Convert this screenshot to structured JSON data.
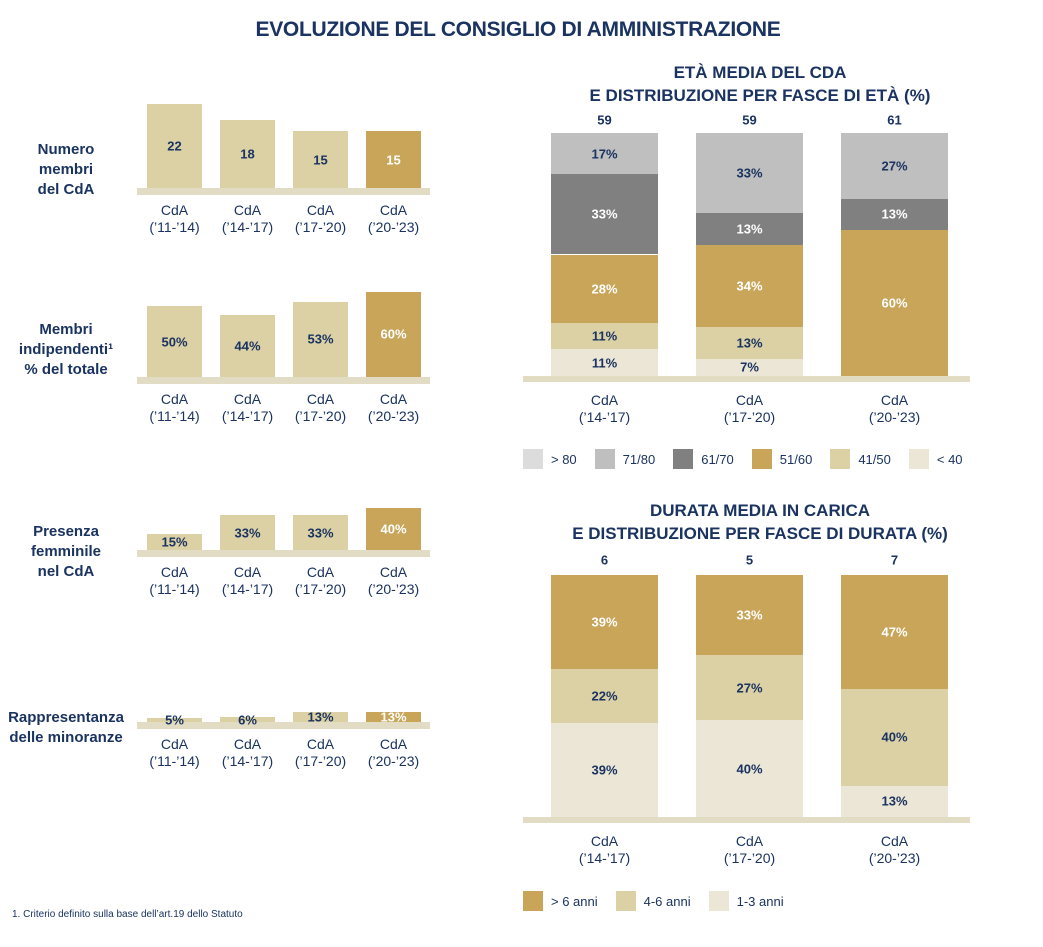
{
  "title": "EVOLUZIONE DEL CONSIGLIO DI AMMINISTRAZIONE",
  "footnote": "1. Criterio definito sulla base dell’art.19 dello Statuto",
  "chart_data": [
    {
      "type": "bar",
      "title": "Numero\nmembri\ndel CdA",
      "categories": [
        "CdA\n(’11-’14)",
        "CdA\n(’14-’17)",
        "CdA\n(’17-’20)",
        "CdA\n(’20-’23)"
      ],
      "values": [
        22,
        18,
        15,
        15
      ],
      "colors": [
        "#dcd1a5",
        "#dcd1a5",
        "#dcd1a5",
        "#c9a55a"
      ]
    },
    {
      "type": "bar",
      "title": "Membri\nindipendenti¹\n% del totale",
      "categories": [
        "CdA\n(’11-’14)",
        "CdA\n(’14-’17)",
        "CdA\n(’17-’20)",
        "CdA\n(’20-’23)"
      ],
      "values": [
        50,
        44,
        53,
        60
      ],
      "value_labels": [
        "50%",
        "44%",
        "53%",
        "60%"
      ],
      "colors": [
        "#dcd1a5",
        "#dcd1a5",
        "#dcd1a5",
        "#c9a55a"
      ]
    },
    {
      "type": "bar",
      "title": "Presenza\nfemminile\nnel CdA",
      "categories": [
        "CdA\n(’11-’14)",
        "CdA\n(’14-’17)",
        "CdA\n(’17-’20)",
        "CdA\n(’20-’23)"
      ],
      "values": [
        15,
        33,
        33,
        40
      ],
      "value_labels": [
        "15%",
        "33%",
        "33%",
        "40%"
      ],
      "colors": [
        "#dcd1a5",
        "#dcd1a5",
        "#dcd1a5",
        "#c9a55a"
      ]
    },
    {
      "type": "bar",
      "title": "Rappresentanza\ndelle minoranze",
      "categories": [
        "CdA\n(’11-’14)",
        "CdA\n(’14-’17)",
        "CdA\n(’17-’20)",
        "CdA\n(’20-’23)"
      ],
      "values": [
        5,
        6,
        13,
        13
      ],
      "value_labels": [
        "5%",
        "6%",
        "13%",
        "13%"
      ],
      "colors": [
        "#dcd1a5",
        "#dcd1a5",
        "#dcd1a5",
        "#c9a55a"
      ]
    },
    {
      "type": "stacked_bar",
      "title": "ETÀ MEDIA DEL CDA\nE DISTRIBUZIONE PER FASCE DI ETÀ (%)",
      "categories": [
        "CdA\n(’14-’17)",
        "CdA\n(’17-’20)",
        "CdA\n(’20-’23)"
      ],
      "averages": [
        59,
        59,
        61
      ],
      "ylim": [
        0,
        100
      ],
      "series": [
        {
          "name": "> 80",
          "color": "#dcdcdc",
          "values": [
            null,
            null,
            null
          ]
        },
        {
          "name": "71/80",
          "color": "#bfbfbf",
          "values": [
            17,
            33,
            27
          ],
          "value_labels": [
            "17%",
            "33%",
            "27%"
          ]
        },
        {
          "name": "61/70",
          "color": "#808080",
          "values": [
            33,
            13,
            13
          ],
          "value_labels": [
            "33%",
            "13%",
            "13%"
          ]
        },
        {
          "name": "51/60",
          "color": "#c9a55a",
          "values": [
            28,
            34,
            60
          ],
          "value_labels": [
            "28%",
            "34%",
            "60%"
          ]
        },
        {
          "name": "41/50",
          "color": "#dcd1a5",
          "values": [
            11,
            13,
            null
          ],
          "value_labels": [
            "11%",
            "13%",
            null
          ]
        },
        {
          "name": "< 40",
          "color": "#ece6d6",
          "values": [
            11,
            7,
            null
          ],
          "value_labels": [
            "11%",
            "7%",
            null
          ]
        }
      ]
    },
    {
      "type": "stacked_bar",
      "title": "DURATA MEDIA IN CARICA\nE DISTRIBUZIONE PER FASCE DI DURATA (%)",
      "categories": [
        "CdA\n(’14-’17)",
        "CdA\n(’17-’20)",
        "CdA\n(’20-’23)"
      ],
      "averages": [
        6,
        5,
        7
      ],
      "ylim": [
        0,
        100
      ],
      "series": [
        {
          "name": "> 6 anni",
          "color": "#c9a55a",
          "values": [
            39,
            33,
            47
          ],
          "value_labels": [
            "39%",
            "33%",
            "47%"
          ]
        },
        {
          "name": "4-6 anni",
          "color": "#dcd1a5",
          "values": [
            22,
            27,
            40
          ],
          "value_labels": [
            "22%",
            "27%",
            "40%"
          ]
        },
        {
          "name": "1-3 anni",
          "color": "#ece6d6",
          "values": [
            39,
            40,
            13
          ],
          "value_labels": [
            "39%",
            "40%",
            "13%"
          ]
        }
      ]
    }
  ]
}
